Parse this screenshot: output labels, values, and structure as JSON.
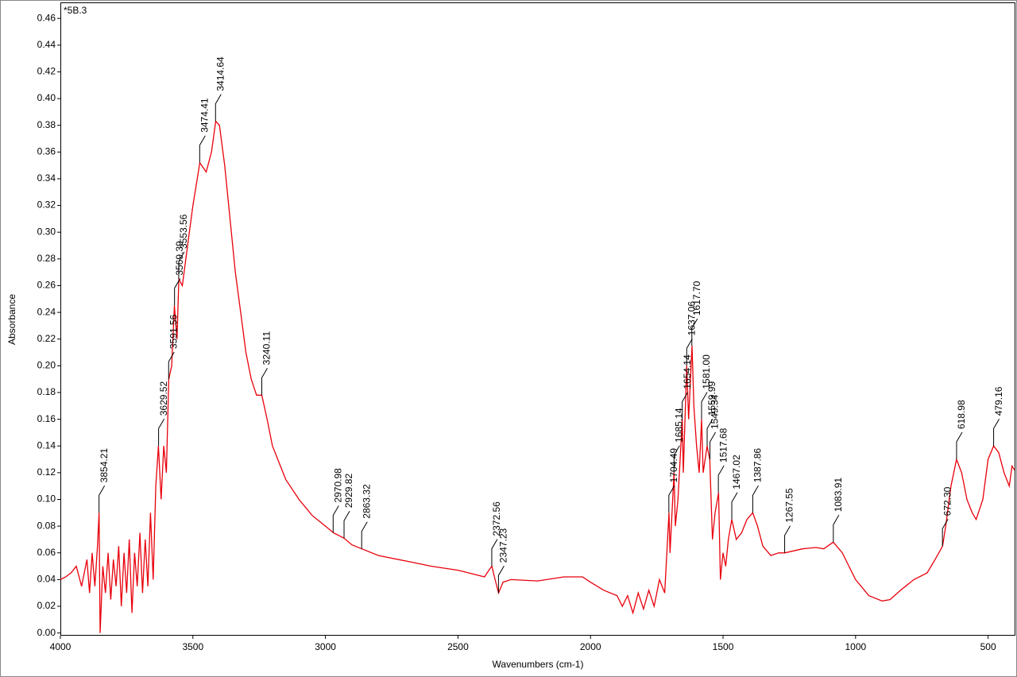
{
  "chart_data": {
    "type": "line",
    "sample_label": "*5B.3",
    "x_label": "Wavenumbers (cm-1)",
    "y_label": "Absorbance",
    "xlim": [
      4000,
      400
    ],
    "ylim": [
      -0.002,
      0.472
    ],
    "xticks": [
      4000,
      3500,
      3000,
      2500,
      2000,
      1500,
      1000,
      500
    ],
    "yticks": [
      {
        "value": 0,
        "label": "0.00"
      },
      {
        "value": 0.02,
        "label": "0.02"
      },
      {
        "value": 0.04,
        "label": "0.04"
      },
      {
        "value": 0.06,
        "label": "0.06"
      },
      {
        "value": 0.08,
        "label": "0.08"
      },
      {
        "value": 0.1,
        "label": "0.10"
      },
      {
        "value": 0.12,
        "label": "0.12"
      },
      {
        "value": 0.14,
        "label": "0.14"
      },
      {
        "value": 0.16,
        "label": "0.16"
      },
      {
        "value": 0.18,
        "label": "0.18"
      },
      {
        "value": 0.2,
        "label": "0.20"
      },
      {
        "value": 0.22,
        "label": "0.22"
      },
      {
        "value": 0.24,
        "label": "0.24"
      },
      {
        "value": 0.26,
        "label": "0.26"
      },
      {
        "value": 0.28,
        "label": "0.28"
      },
      {
        "value": 0.3,
        "label": "0.30"
      },
      {
        "value": 0.32,
        "label": "0.32"
      },
      {
        "value": 0.34,
        "label": "0.34"
      },
      {
        "value": 0.36,
        "label": "0.36"
      },
      {
        "value": 0.38,
        "label": "0.38"
      },
      {
        "value": 0.4,
        "label": "0.40"
      },
      {
        "value": 0.42,
        "label": "0.42"
      },
      {
        "value": 0.44,
        "label": "0.44"
      },
      {
        "value": 0.46,
        "label": "0.46"
      }
    ],
    "color": "#e8000b",
    "x": [
      4000,
      3980,
      3960,
      3940,
      3920,
      3900,
      3890,
      3880,
      3870,
      3860,
      3854,
      3850,
      3840,
      3830,
      3820,
      3810,
      3800,
      3790,
      3780,
      3770,
      3760,
      3750,
      3740,
      3730,
      3720,
      3710,
      3700,
      3690,
      3680,
      3670,
      3660,
      3650,
      3640,
      3630,
      3620,
      3610,
      3600,
      3591,
      3580,
      3570,
      3560,
      3553,
      3540,
      3520,
      3500,
      3474,
      3450,
      3430,
      3414,
      3400,
      3380,
      3360,
      3340,
      3320,
      3300,
      3280,
      3260,
      3240,
      3220,
      3200,
      3150,
      3100,
      3050,
      3000,
      2970,
      2930,
      2900,
      2863,
      2800,
      2700,
      2600,
      2500,
      2400,
      2380,
      2372,
      2360,
      2347,
      2330,
      2300,
      2200,
      2100,
      2030,
      2000,
      1950,
      1900,
      1880,
      1860,
      1840,
      1820,
      1800,
      1780,
      1760,
      1740,
      1720,
      1704,
      1700,
      1685,
      1680,
      1670,
      1654,
      1650,
      1637,
      1630,
      1617,
      1610,
      1600,
      1590,
      1581,
      1575,
      1560,
      1550,
      1540,
      1530,
      1517,
      1510,
      1500,
      1490,
      1480,
      1467,
      1450,
      1430,
      1410,
      1388,
      1370,
      1350,
      1320,
      1290,
      1267,
      1200,
      1150,
      1120,
      1084,
      1050,
      1000,
      950,
      900,
      870,
      830,
      780,
      730,
      700,
      672,
      660,
      640,
      619,
      600,
      580,
      560,
      545,
      520,
      500,
      479,
      460,
      440,
      420,
      410,
      400
    ],
    "values": [
      0.04,
      0.042,
      0.045,
      0.05,
      0.035,
      0.055,
      0.03,
      0.06,
      0.035,
      0.065,
      0.09,
      0.0,
      0.05,
      0.03,
      0.06,
      0.025,
      0.055,
      0.035,
      0.065,
      0.02,
      0.06,
      0.03,
      0.07,
      0.015,
      0.06,
      0.035,
      0.075,
      0.03,
      0.07,
      0.035,
      0.09,
      0.04,
      0.11,
      0.14,
      0.1,
      0.14,
      0.12,
      0.19,
      0.2,
      0.245,
      0.22,
      0.265,
      0.26,
      0.29,
      0.32,
      0.352,
      0.345,
      0.36,
      0.383,
      0.38,
      0.35,
      0.31,
      0.27,
      0.24,
      0.21,
      0.19,
      0.178,
      0.178,
      0.16,
      0.14,
      0.115,
      0.1,
      0.088,
      0.08,
      0.075,
      0.071,
      0.066,
      0.063,
      0.058,
      0.054,
      0.05,
      0.047,
      0.042,
      0.048,
      0.05,
      0.04,
      0.03,
      0.038,
      0.04,
      0.039,
      0.042,
      0.042,
      0.038,
      0.032,
      0.028,
      0.02,
      0.028,
      0.015,
      0.03,
      0.018,
      0.032,
      0.02,
      0.04,
      0.03,
      0.09,
      0.06,
      0.12,
      0.08,
      0.1,
      0.16,
      0.12,
      0.2,
      0.16,
      0.215,
      0.17,
      0.14,
      0.12,
      0.16,
      0.12,
      0.14,
      0.13,
      0.07,
      0.09,
      0.105,
      0.04,
      0.06,
      0.05,
      0.07,
      0.085,
      0.07,
      0.075,
      0.085,
      0.09,
      0.08,
      0.065,
      0.058,
      0.06,
      0.06,
      0.063,
      0.064,
      0.063,
      0.068,
      0.06,
      0.04,
      0.028,
      0.024,
      0.025,
      0.032,
      0.04,
      0.045,
      0.055,
      0.065,
      0.08,
      0.11,
      0.13,
      0.12,
      0.1,
      0.09,
      0.085,
      0.1,
      0.13,
      0.14,
      0.135,
      0.12,
      0.11,
      0.125,
      0.122
    ],
    "peaks": {
      "x": [
        3854.21,
        3629.52,
        3591.56,
        3569.39,
        3553.56,
        3474.41,
        3414.64,
        3240.11,
        2970.98,
        2929.82,
        2863.32,
        2372.56,
        2347.23,
        1704.49,
        1685.14,
        1654.14,
        1637.06,
        1617.7,
        1581,
        1559.99,
        1549.34,
        1517.68,
        1467.02,
        1387.86,
        1267.55,
        1083.91,
        672.3,
        618.98,
        479.16
      ],
      "y": [
        0.09,
        0.14,
        0.19,
        0.245,
        0.265,
        0.352,
        0.383,
        0.178,
        0.075,
        0.071,
        0.063,
        0.05,
        0.03,
        0.09,
        0.12,
        0.16,
        0.2,
        0.215,
        0.16,
        0.14,
        0.13,
        0.105,
        0.085,
        0.09,
        0.06,
        0.068,
        0.065,
        0.13,
        0.14
      ],
      "labels": [
        "3854.21",
        "3629.52",
        "3591.56",
        "3569.39",
        "3553.56",
        "3474.41",
        "3414.64",
        "3240.11",
        "2970.98",
        "2929.82",
        "2863.32",
        "2372.56",
        "2347.23",
        "1704.49",
        "1685.14",
        "1654.14",
        "1637.06",
        "1617.70",
        "1581.00",
        "1559.99",
        "1549.34",
        "1517.68",
        "1467.02",
        "1387.86",
        "1267.55",
        "1083.91",
        "672.30",
        "618.98",
        "479.16"
      ]
    }
  }
}
